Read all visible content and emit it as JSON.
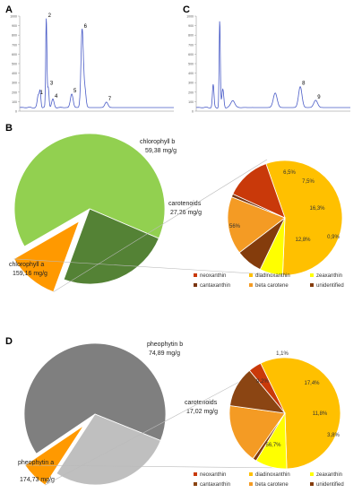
{
  "panels": {
    "A": {
      "label": "A"
    },
    "B": {
      "label": "B"
    },
    "C": {
      "label": "C"
    },
    "D": {
      "label": "D"
    }
  },
  "chart_data": [
    {
      "id": "A",
      "type": "line",
      "title": "",
      "xlabel": "",
      "ylabel": "",
      "yticks": [
        "1000",
        "900",
        "800",
        "700",
        "600",
        "500",
        "400",
        "300",
        "200",
        "100",
        "0"
      ],
      "ylim": [
        0,
        1050
      ],
      "xlim": [
        0,
        40
      ],
      "baseline": 40,
      "peaks": [
        {
          "label": "1",
          "x": 4.8,
          "height": 130,
          "width": 0.25
        },
        {
          "label": "",
          "x": 5.3,
          "height": 180,
          "width": 0.2
        },
        {
          "label": "2",
          "x": 6.9,
          "height": 980,
          "width": 0.15
        },
        {
          "label": "3",
          "x": 7.4,
          "height": 230,
          "width": 0.2
        },
        {
          "label": "4",
          "x": 8.6,
          "height": 90,
          "width": 0.3
        },
        {
          "label": "5",
          "x": 13.5,
          "height": 150,
          "width": 0.35
        },
        {
          "label": "6",
          "x": 16.2,
          "height": 860,
          "width": 0.3
        },
        {
          "label": "",
          "x": 16.9,
          "height": 200,
          "width": 0.3
        },
        {
          "label": "7",
          "x": 22.5,
          "height": 60,
          "width": 0.4
        }
      ],
      "color": "#4a5cc7"
    },
    {
      "id": "C",
      "type": "line",
      "title": "",
      "xlabel": "",
      "ylabel": "",
      "yticks": [
        "1000",
        "900",
        "800",
        "700",
        "600",
        "500",
        "400",
        "300",
        "200",
        "100",
        "0"
      ],
      "ylim": [
        0,
        1050
      ],
      "xlim": [
        0,
        40
      ],
      "baseline": 40,
      "peaks": [
        {
          "label": "",
          "x": 4.4,
          "height": 250,
          "width": 0.2
        },
        {
          "label": "",
          "x": 6.1,
          "height": 960,
          "width": 0.15
        },
        {
          "label": "",
          "x": 6.9,
          "height": 200,
          "width": 0.25
        },
        {
          "label": "",
          "x": 9.5,
          "height": 80,
          "width": 0.5
        },
        {
          "label": "",
          "x": 20.5,
          "height": 160,
          "width": 0.5
        },
        {
          "label": "8",
          "x": 27.0,
          "height": 230,
          "width": 0.45
        },
        {
          "label": "9",
          "x": 31.0,
          "height": 80,
          "width": 0.5
        }
      ],
      "color": "#4a5cc7"
    },
    {
      "id": "B-main",
      "type": "pie",
      "slices": [
        {
          "name": "chlorophyll a",
          "value": 159.16,
          "value_label": "159,16 mg/g",
          "color": "#92d050"
        },
        {
          "name": "chlorophyll b",
          "value": 59.38,
          "value_label": "59,38 mg/g",
          "color": "#548235"
        },
        {
          "name": "carotenoids",
          "value": 27.26,
          "value_label": "27,26 mg/g",
          "color": "#ff9900"
        }
      ]
    },
    {
      "id": "B-carotenoids",
      "type": "pie",
      "slices": [
        {
          "name": "diadinoxanthin",
          "value": 56,
          "label": "56%",
          "color": "#ffc000"
        },
        {
          "name": "zeaxanthin",
          "value": 6.5,
          "label": "6,5%",
          "color": "#ffff00"
        },
        {
          "name": "unidentified",
          "value": 7.5,
          "label": "7,5%",
          "color": "#843c0c"
        },
        {
          "name": "beta carotene",
          "value": 16.3,
          "label": "16,3%",
          "color": "#f49b24"
        },
        {
          "name": "cantaxanthin",
          "value": 0.9,
          "label": "0,9%",
          "color": "#7a3510"
        },
        {
          "name": "neoxanthin",
          "value": 12.8,
          "label": "12,8%",
          "color": "#c9390a"
        }
      ],
      "legend": [
        "neoxanthin",
        "diadinoxanthin",
        "zeaxanthin",
        "cantaxanthin",
        "beta carotene",
        "unidentified"
      ]
    },
    {
      "id": "D-main",
      "type": "pie",
      "slices": [
        {
          "name": "pheophytin a",
          "value": 174.73,
          "value_label": "174,73 mg/g",
          "color": "#7f7f7f"
        },
        {
          "name": "pheophytin b",
          "value": 74.89,
          "value_label": "74,89 mg/g",
          "color": "#bfbfbf"
        },
        {
          "name": "carotenoids",
          "value": 17.02,
          "value_label": "17,02 mg/g",
          "color": "#ff9900"
        }
      ]
    },
    {
      "id": "D-carotenoids",
      "type": "pie",
      "slices": [
        {
          "name": "diadinoxanthin",
          "value": 56.7,
          "label": "56,7%",
          "color": "#ffc000"
        },
        {
          "name": "zeaxanthin",
          "value": 9.2,
          "label": "9,2%",
          "color": "#ffff00"
        },
        {
          "name": "unidentified",
          "value": 1.1,
          "label": "1,1%",
          "color": "#843c0c"
        },
        {
          "name": "beta carotene",
          "value": 17.4,
          "label": "17,4%",
          "color": "#f49b24"
        },
        {
          "name": "cantaxanthin",
          "value": 11.8,
          "label": "11,8%",
          "color": "#8b4513"
        },
        {
          "name": "neoxanthin",
          "value": 3.8,
          "label": "3,8%",
          "color": "#c9390a"
        }
      ],
      "legend": [
        "neoxanthin",
        "diadinoxanthin",
        "zeaxanthin",
        "cantaxanthin",
        "beta carotene",
        "unidentified"
      ]
    }
  ]
}
